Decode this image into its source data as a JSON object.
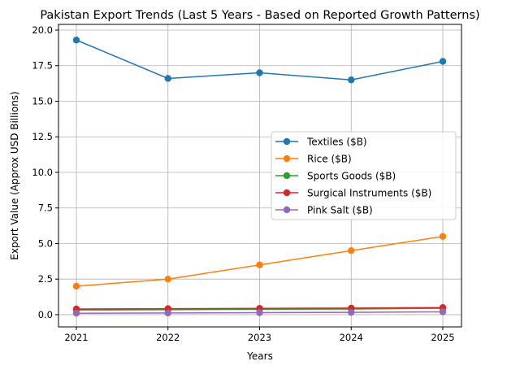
{
  "chart_data": {
    "type": "line",
    "title": "Pakistan Export Trends (Last 5 Years - Based on Reported Growth Patterns)",
    "xlabel": "Years",
    "ylabel": "Export Value (Approx USD Billions)",
    "x": [
      "2021",
      "2022",
      "2023",
      "2024",
      "2025"
    ],
    "ylim": [
      -0.86,
      20.4
    ],
    "yticks": [
      "0.0",
      "2.5",
      "5.0",
      "7.5",
      "10.0",
      "12.5",
      "15.0",
      "17.5",
      "20.0"
    ],
    "grid": true,
    "legend_position": "center-right",
    "series": [
      {
        "name": "Textiles ($B)",
        "color": "#1f77b4",
        "values": [
          19.3,
          16.6,
          17.0,
          16.5,
          17.8
        ]
      },
      {
        "name": "Rice ($B)",
        "color": "#ff7f0e",
        "values": [
          2.0,
          2.5,
          3.5,
          4.5,
          5.5
        ]
      },
      {
        "name": "Sports Goods ($B)",
        "color": "#2ca02c",
        "values": [
          0.33,
          0.35,
          0.38,
          0.4,
          0.45
        ]
      },
      {
        "name": "Surgical Instruments ($B)",
        "color": "#d62728",
        "values": [
          0.4,
          0.42,
          0.44,
          0.46,
          0.5
        ]
      },
      {
        "name": "Pink Salt ($B)",
        "color": "#9467bd",
        "values": [
          0.1,
          0.12,
          0.14,
          0.16,
          0.2
        ]
      }
    ]
  }
}
